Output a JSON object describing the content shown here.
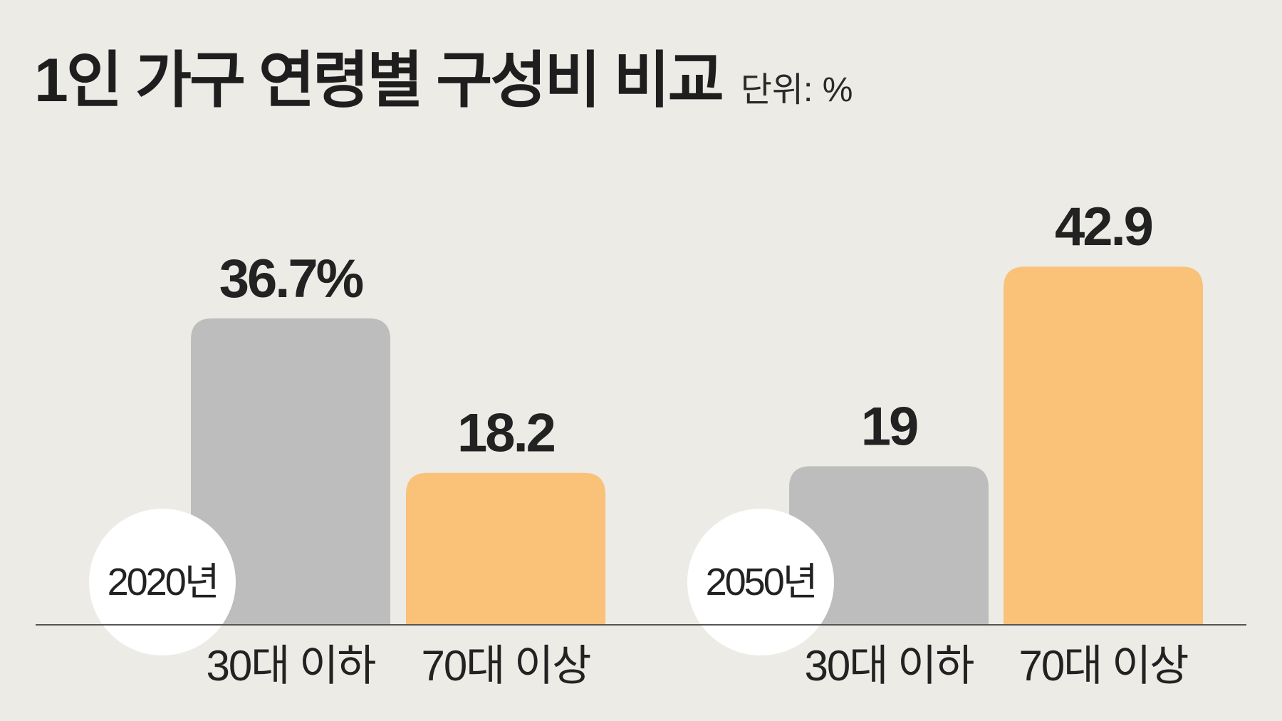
{
  "title": "1인 가구 연령별 구성비 비교",
  "unit": "단위: %",
  "chart_data": {
    "type": "bar",
    "title": "1인 가구 연령별 구성비 비교",
    "unit": "단위: %",
    "groups": [
      {
        "name": "2020년",
        "bars": [
          {
            "category": "30대 이하",
            "value": 36.7,
            "label": "36.7%"
          },
          {
            "category": "70대 이상",
            "value": 18.2,
            "label": "18.2"
          }
        ]
      },
      {
        "name": "2050년",
        "bars": [
          {
            "category": "30대 이하",
            "value": 19,
            "label": "19"
          },
          {
            "category": "70대 이상",
            "value": 42.9,
            "label": "42.9"
          }
        ]
      }
    ],
    "colors": {
      "30대 이하": "#bdbdbd",
      "70대 이상": "#fac179"
    },
    "axis_line_color": "#555555",
    "circle_color": "#ffffff",
    "grid": false
  }
}
